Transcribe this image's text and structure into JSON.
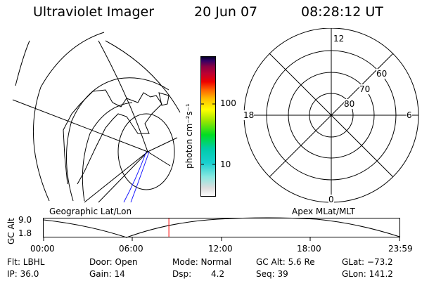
{
  "header": {
    "title": "Ultraviolet Imager",
    "date": "20 Jun 07",
    "time": "08:28:12 UT"
  },
  "colorbar": {
    "unit_label": "photon cm⁻²s⁻¹",
    "ticks": [
      "100",
      "10"
    ]
  },
  "polar": {
    "mlt_labels": [
      "12",
      "18",
      "6",
      "0"
    ],
    "lat_labels": [
      "60",
      "70",
      "80"
    ]
  },
  "map_labels": {
    "left": "Geographic Lat/Lon",
    "right": "Apex MLat/MLT"
  },
  "altitude_plot": {
    "ylabel": "GC Alt",
    "yticks": [
      "9.0",
      "1.8"
    ],
    "xticks": [
      "00:00",
      "06:00",
      "12:00",
      "18:00",
      "23:59"
    ],
    "current_time_fraction": 0.352,
    "marker_color": "#ff0000"
  },
  "info": {
    "filter": "Flt: LBHL",
    "ip": "IP: 36.0",
    "door": "Door: Open",
    "gain": "Gain: 14",
    "mode": "Mode: Normal",
    "dsp_label": "Dsp:",
    "dsp_value": "4.2",
    "gc_alt": "GC Alt: 5.6 Re",
    "seq": "Seq: 39",
    "glat": "GLat: −73.2",
    "glon": "GLon: 141.2"
  }
}
